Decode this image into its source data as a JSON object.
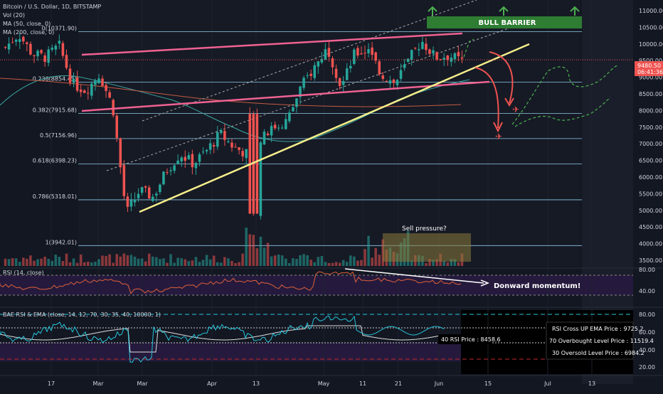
{
  "header": {
    "symbol_line": "Bitcoin / U.S. Dollar, 1D, BITSTAMP",
    "vol_line": "Vol (20)",
    "ma1_line": "MA (50, close, 0)",
    "ma2_line": "MA (200, close, 0)"
  },
  "price_axis": {
    "ticks": [
      "11000.00",
      "10500.00",
      "10000.00",
      "9500.00",
      "9000.00",
      "8500.00",
      "8000.00",
      "7500.00",
      "7000.00",
      "6500.00",
      "6000.00",
      "5500.00",
      "5000.00",
      "4500.00",
      "4000.00",
      "3500.00"
    ],
    "current_price": "9480.50",
    "countdown": "06:41:36",
    "current_price_color": "#ef5350"
  },
  "fib_levels": [
    {
      "label": "0(10371.90)",
      "value": 10371.9
    },
    {
      "label": "0.236(8854.45)",
      "value": 8854.45
    },
    {
      "label": "0.382(7915.68)",
      "value": 7915.68
    },
    {
      "label": "0.5(7156.96)",
      "value": 7156.96
    },
    {
      "label": "0.618(6398.23)",
      "value": 6398.23
    },
    {
      "label": "0.786(5318.01)",
      "value": 5318.01
    },
    {
      "label": "1(3942.01)",
      "value": 3942.01
    }
  ],
  "annotations": {
    "bull_barrier": "BULL BARRIER",
    "sell_pressure": "Sell pressure?",
    "downward_momentum": "Donward momentum!"
  },
  "rsi_panel": {
    "title": "RSI (14, close)",
    "ticks": [
      "80.00",
      "40.00"
    ]
  },
  "bae_panel": {
    "title": "BAE RSI & EMA (close, 14, 12, 70, 30, 35, 40, 10000, 1)",
    "ticks": [
      "80.00",
      "60.00",
      "40.00",
      "20.00"
    ],
    "rsi_price_label": "40 RSI Price : 8458.6",
    "table_rows": [
      "RSI Cross UP EMA Price : 9725.2",
      "70 Overbought Level Price : 11519.4",
      "30 Oversold Level Price : 6984.2"
    ]
  },
  "time_axis": {
    "labels": [
      "17",
      "Mar",
      "Mar",
      "Apr",
      "13",
      "May",
      "11",
      "21",
      "Jun",
      "15",
      "Jul",
      "13"
    ]
  },
  "colors": {
    "up": "#26a69a",
    "down": "#ef5350",
    "channel": "#f06292",
    "trendline": "#f5ee8a",
    "bull_barrier": "#2e7d32",
    "fib_line": "#8ecae6"
  },
  "chart_data": {
    "type": "candlestick",
    "title": "Bitcoin / U.S. Dollar, 1D, BITSTAMP",
    "series": [
      {
        "name": "MA (50, close, 0)"
      },
      {
        "name": "MA (200, close, 0)"
      }
    ],
    "close_path": [
      [
        "Feb 10",
        9900
      ],
      [
        "Feb 13",
        10300
      ],
      [
        "Feb 17",
        9700
      ],
      [
        "Feb 20",
        9600
      ],
      [
        "Feb 24",
        9950
      ],
      [
        "Feb 27",
        8800
      ],
      [
        "Mar 1",
        8600
      ],
      [
        "Mar 5",
        9100
      ],
      [
        "Mar 8",
        8100
      ],
      [
        "Mar 12",
        4900
      ],
      [
        "Mar 13",
        5600
      ],
      [
        "Mar 18",
        5400
      ],
      [
        "Mar 22",
        6200
      ],
      [
        "Mar 26",
        6700
      ],
      [
        "Mar 30",
        6400
      ],
      [
        "Apr 3",
        6800
      ],
      [
        "Apr 7",
        7300
      ],
      [
        "Apr 11",
        6900
      ],
      [
        "Apr 15",
        6700
      ],
      [
        "Apr 19",
        7100
      ],
      [
        "Apr 23",
        7500
      ],
      [
        "Apr 27",
        7700
      ],
      [
        "Apr 30",
        8700
      ],
      [
        "May 3",
        9300
      ],
      [
        "May 7",
        9900
      ],
      [
        "May 10",
        8700
      ],
      [
        "May 14",
        9700
      ],
      [
        "May 18",
        9800
      ],
      [
        "May 22",
        9100
      ],
      [
        "May 26",
        8800
      ],
      [
        "May 30",
        9500
      ],
      [
        "Jun 2",
        10100
      ],
      [
        "Jun 3",
        9600
      ],
      [
        "Jun 6",
        9650
      ],
      [
        "Jun 8",
        9480
      ]
    ],
    "fib_retracement": [
      10371.9,
      8854.45,
      7915.68,
      7156.96,
      6398.23,
      5318.01,
      3942.01
    ],
    "y_range": [
      3300,
      11200
    ],
    "rsi_range": [
      20,
      80
    ],
    "current_price": 9480.5
  }
}
